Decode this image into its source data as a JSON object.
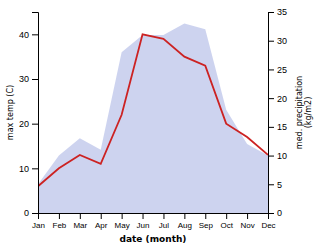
{
  "chart_data": {
    "type": "line",
    "categories": [
      "Jan",
      "Feb",
      "Mar",
      "Apr",
      "May",
      "Jun",
      "Jul",
      "Aug",
      "Sep",
      "Oct",
      "Nov",
      "Dec"
    ],
    "series": [
      {
        "type": "area",
        "axis": "y2",
        "color": "#b8c0e8",
        "values": [
          5,
          10,
          13,
          11,
          28,
          31,
          31,
          33,
          32,
          18,
          12,
          10
        ]
      },
      {
        "type": "line",
        "color": "#cc2222",
        "values": [
          6,
          10,
          13,
          11,
          22,
          40,
          39,
          35,
          33,
          20,
          17,
          13
        ]
      }
    ],
    "x_label": "date (month)",
    "y_label": "max temp (C)",
    "y2_label": "med. precipitation\n(kg/m2)",
    "ylim": [
      0,
      45
    ],
    "yticks": [
      0,
      10,
      20,
      30,
      40
    ],
    "y2lim": [
      0,
      35
    ],
    "y2ticks": [
      0,
      5,
      10,
      15,
      20,
      25,
      30,
      35
    ],
    "grid": false
  }
}
